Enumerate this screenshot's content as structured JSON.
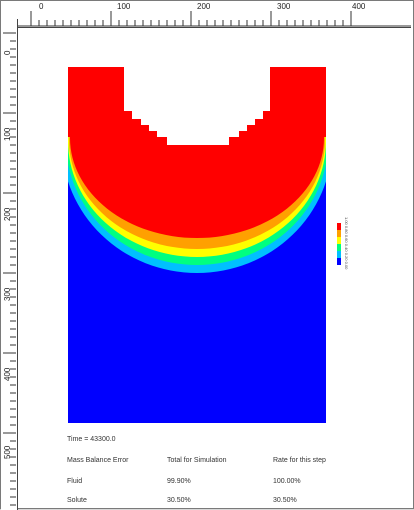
{
  "ruler": {
    "top_labels": [
      "0",
      "100",
      "200",
      "300",
      "400"
    ],
    "left_labels": [
      "0",
      "100",
      "200",
      "300",
      "400",
      "500"
    ]
  },
  "legend": {
    "colors": [
      "#ff0000",
      "#ffa000",
      "#ffff00",
      "#00ff80",
      "#00c0ff",
      "#0000ff"
    ],
    "labels": [
      "1.00",
      "0.80",
      "0.60",
      "0.40",
      "0.20",
      "0.00"
    ]
  },
  "info": {
    "time_label": "Time = 43300.0",
    "mass_balance_label": "Mass Balance Error",
    "col_total": "Total for Simulation",
    "col_rate": "Rate for this step",
    "fluid_label": "Fluid",
    "fluid_total": "99.90%",
    "fluid_rate": "100.00%",
    "solute_label": "Solute",
    "solute_total": "30.50%",
    "solute_rate": "30.50%"
  },
  "colors": {
    "domain": "#0000ff",
    "source": "#ff0000"
  }
}
